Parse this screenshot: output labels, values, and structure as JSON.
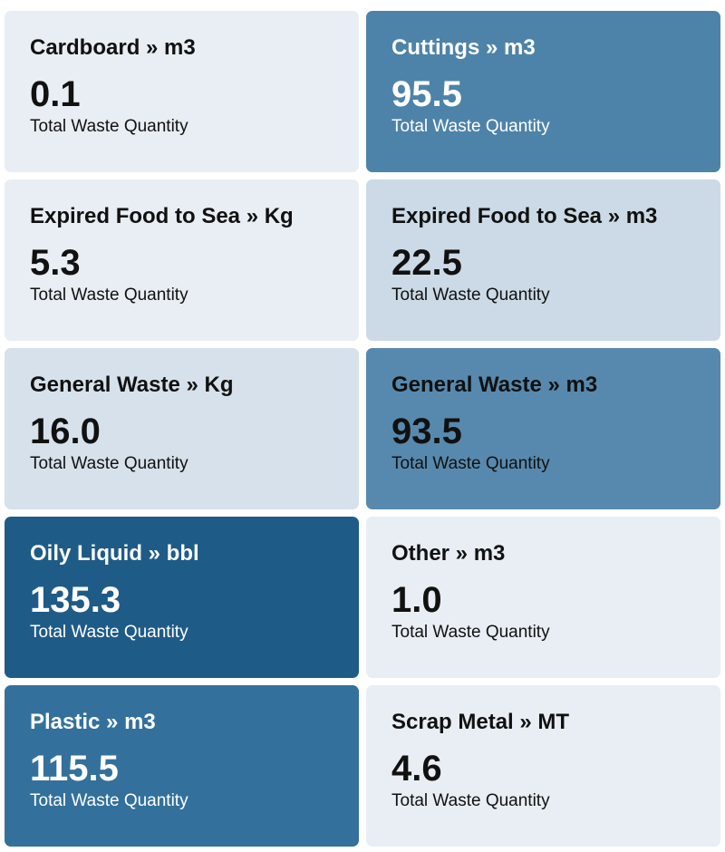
{
  "tiles": [
    {
      "title": "Cardboard » m3",
      "value": "0.1",
      "caption": "Total Waste Quantity",
      "bg": "#e8eef4",
      "text": "light"
    },
    {
      "title": "Cuttings » m3",
      "value": "95.5",
      "caption": "Total Waste Quantity",
      "bg": "#4e83a9",
      "text": "dark"
    },
    {
      "title": "Expired Food to Sea » Kg",
      "value": "5.3",
      "caption": "Total Waste Quantity",
      "bg": "#e8eef4",
      "text": "light"
    },
    {
      "title": "Expired Food to Sea » m3",
      "value": "22.5",
      "caption": "Total Waste Quantity",
      "bg": "#cbdae6",
      "text": "light"
    },
    {
      "title": "General Waste » Kg",
      "value": "16.0",
      "caption": "Total Waste Quantity",
      "bg": "#d6e1eb",
      "text": "light"
    },
    {
      "title": "General Waste » m3",
      "value": "93.5",
      "caption": "Total Waste Quantity",
      "bg": "#5789ae",
      "text": "light"
    },
    {
      "title": "Oily Liquid » bbl",
      "value": "135.3",
      "caption": "Total Waste Quantity",
      "bg": "#1f5b87",
      "text": "dark"
    },
    {
      "title": "Other » m3",
      "value": "1.0",
      "caption": "Total Waste Quantity",
      "bg": "#e8eef4",
      "text": "light"
    },
    {
      "title": "Plastic » m3",
      "value": "115.5",
      "caption": "Total Waste Quantity",
      "bg": "#33719c",
      "text": "dark"
    },
    {
      "title": "Scrap Metal » MT",
      "value": "4.6",
      "caption": "Total Waste Quantity",
      "bg": "#e8eef4",
      "text": "light"
    }
  ]
}
